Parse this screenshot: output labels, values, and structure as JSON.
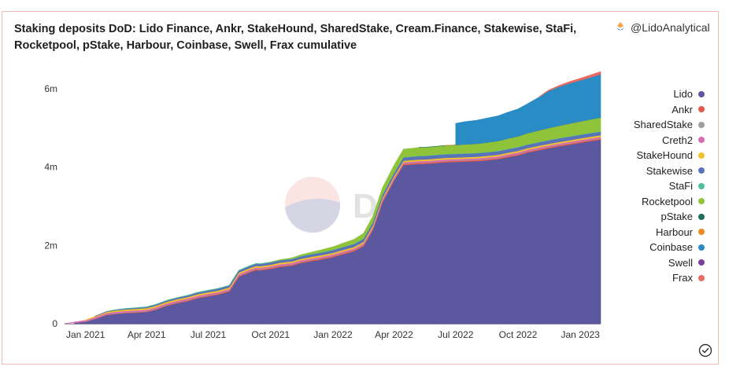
{
  "header": {
    "title": "Staking deposits DoD: Lido Finance, Ankr, StakeHound, SharedStake, Cream.Finance, Stakewise, StaFi, Rocketpool, pStake, Harbour, Coinbase, Swell, Frax cumulative",
    "author": "@LidoAnalytical"
  },
  "watermark": "Dune",
  "chart_data": {
    "type": "area",
    "stacked": true,
    "x": [
      "2020-12-01",
      "2020-12-15",
      "2021-01-01",
      "2021-01-15",
      "2021-02-01",
      "2021-02-15",
      "2021-03-01",
      "2021-03-15",
      "2021-04-01",
      "2021-04-15",
      "2021-05-01",
      "2021-05-15",
      "2021-06-01",
      "2021-06-15",
      "2021-07-01",
      "2021-07-15",
      "2021-08-01",
      "2021-08-15",
      "2021-09-01",
      "2021-09-10",
      "2021-09-15",
      "2021-10-01",
      "2021-10-15",
      "2021-11-01",
      "2021-11-15",
      "2021-12-01",
      "2021-12-15",
      "2022-01-01",
      "2022-01-15",
      "2022-02-01",
      "2022-02-15",
      "2022-03-01",
      "2022-03-15",
      "2022-04-01",
      "2022-04-15",
      "2022-05-01",
      "2022-05-08",
      "2022-05-15",
      "2022-06-01",
      "2022-06-15",
      "2022-07-01",
      "2022-07-15",
      "2022-08-01",
      "2022-08-15",
      "2022-09-01",
      "2022-09-15",
      "2022-10-01",
      "2022-10-15",
      "2022-11-01",
      "2022-11-15",
      "2022-12-01",
      "2022-12-15",
      "2023-01-01",
      "2023-01-15",
      "2023-01-31"
    ],
    "series": [
      {
        "name": "Lido",
        "color": "#5b58a0",
        "values": [
          0,
          0.02,
          0.05,
          0.12,
          0.22,
          0.25,
          0.27,
          0.28,
          0.3,
          0.36,
          0.46,
          0.52,
          0.58,
          0.65,
          0.7,
          0.74,
          0.82,
          1.2,
          1.32,
          1.37,
          1.36,
          1.4,
          1.45,
          1.48,
          1.55,
          1.6,
          1.64,
          1.7,
          1.77,
          1.85,
          1.98,
          2.4,
          3.1,
          3.65,
          4.05,
          4.07,
          4.08,
          4.08,
          4.1,
          4.12,
          4.13,
          4.14,
          4.15,
          4.17,
          4.2,
          4.25,
          4.3,
          4.37,
          4.43,
          4.48,
          4.53,
          4.57,
          4.62,
          4.66,
          4.7
        ]
      },
      {
        "name": "Ankr",
        "color": "#e8584a",
        "values": [
          0,
          0.002,
          0.005,
          0.008,
          0.01,
          0.012,
          0.013,
          0.014,
          0.015,
          0.016,
          0.017,
          0.018,
          0.02,
          0.02,
          0.021,
          0.022,
          0.022,
          0.023,
          0.023,
          0.024,
          0.024,
          0.024,
          0.025,
          0.025,
          0.025,
          0.026,
          0.026,
          0.026,
          0.027,
          0.027,
          0.027,
          0.028,
          0.028,
          0.028,
          0.028,
          0.028,
          0.028,
          0.028,
          0.028,
          0.028,
          0.028,
          0.028,
          0.028,
          0.028,
          0.028,
          0.028,
          0.028,
          0.028,
          0.028,
          0.028,
          0.028,
          0.028,
          0.028,
          0.028,
          0.028
        ]
      },
      {
        "name": "SharedStake",
        "color": "#9e9e9e",
        "values": [
          0,
          0,
          0.002,
          0.005,
          0.008,
          0.01,
          0.01,
          0.01,
          0.01,
          0.01,
          0.01,
          0.01,
          0.01,
          0.01,
          0.01,
          0.01,
          0.01,
          0.01,
          0.01,
          0.01,
          0.01,
          0.01,
          0.01,
          0.01,
          0.01,
          0.01,
          0.01,
          0.01,
          0.01,
          0.01,
          0.01,
          0.01,
          0.01,
          0.01,
          0.01,
          0.01,
          0.01,
          0.01,
          0.01,
          0.01,
          0.01,
          0.01,
          0.01,
          0.01,
          0.01,
          0.01,
          0.01,
          0.01,
          0.01,
          0.01,
          0.01,
          0.01,
          0.01,
          0.01,
          0.01
        ]
      },
      {
        "name": "Creth2",
        "color": "#d86db3",
        "values": [
          0.005,
          0.02,
          0.03,
          0.035,
          0.035,
          0.035,
          0.035,
          0.035,
          0.035,
          0.035,
          0.035,
          0.035,
          0.035,
          0.035,
          0.035,
          0.035,
          0.035,
          0.035,
          0.035,
          0.035,
          0.035,
          0.035,
          0.035,
          0.035,
          0.035,
          0.035,
          0.035,
          0.035,
          0.035,
          0.035,
          0.035,
          0.035,
          0.035,
          0.035,
          0.035,
          0.035,
          0.035,
          0.035,
          0.035,
          0.035,
          0.035,
          0.035,
          0.035,
          0.035,
          0.035,
          0.035,
          0.035,
          0.035,
          0.035,
          0.035,
          0.035,
          0.035,
          0.035,
          0.035,
          0.035
        ]
      },
      {
        "name": "StakeHound",
        "color": "#f2c12e",
        "values": [
          0,
          0,
          0.01,
          0.02,
          0.03,
          0.035,
          0.038,
          0.04,
          0.04,
          0.04,
          0.04,
          0.04,
          0.04,
          0.04,
          0.04,
          0.04,
          0.04,
          0.04,
          0.04,
          0.04,
          0.04,
          0.04,
          0.04,
          0.04,
          0.04,
          0.04,
          0.04,
          0.04,
          0.04,
          0.04,
          0.04,
          0.04,
          0.04,
          0.04,
          0.04,
          0.04,
          0.04,
          0.04,
          0.04,
          0.04,
          0.04,
          0.04,
          0.04,
          0.04,
          0.04,
          0.04,
          0.04,
          0.04,
          0.04,
          0.04,
          0.04,
          0.04,
          0.04,
          0.04,
          0.04
        ]
      },
      {
        "name": "Stakewise",
        "color": "#5a72b8",
        "values": [
          0,
          0,
          0,
          0.005,
          0.01,
          0.015,
          0.02,
          0.025,
          0.028,
          0.03,
          0.032,
          0.035,
          0.038,
          0.04,
          0.042,
          0.045,
          0.048,
          0.05,
          0.052,
          0.054,
          0.054,
          0.056,
          0.058,
          0.06,
          0.062,
          0.064,
          0.066,
          0.068,
          0.07,
          0.072,
          0.075,
          0.078,
          0.08,
          0.082,
          0.085,
          0.087,
          0.088,
          0.088,
          0.09,
          0.09,
          0.09,
          0.09,
          0.09,
          0.09,
          0.09,
          0.09,
          0.09,
          0.09,
          0.09,
          0.09,
          0.09,
          0.09,
          0.09,
          0.09,
          0.09
        ]
      },
      {
        "name": "StaFi",
        "color": "#4dbf9a",
        "values": [
          0,
          0,
          0,
          0,
          0.001,
          0.002,
          0.003,
          0.004,
          0.005,
          0.006,
          0.006,
          0.007,
          0.007,
          0.008,
          0.008,
          0.008,
          0.009,
          0.009,
          0.009,
          0.009,
          0.009,
          0.009,
          0.009,
          0.01,
          0.01,
          0.01,
          0.01,
          0.01,
          0.01,
          0.01,
          0.01,
          0.01,
          0.01,
          0.01,
          0.01,
          0.01,
          0.01,
          0.01,
          0.01,
          0.01,
          0.01,
          0.01,
          0.01,
          0.01,
          0.01,
          0.01,
          0.01,
          0.01,
          0.01,
          0.01,
          0.01,
          0.01,
          0.01,
          0.01,
          0.01
        ]
      },
      {
        "name": "Rocketpool",
        "color": "#8fc43a",
        "values": [
          0,
          0,
          0,
          0,
          0,
          0,
          0,
          0,
          0,
          0,
          0,
          0,
          0,
          0,
          0,
          0,
          0,
          0,
          0,
          0,
          0,
          0.002,
          0.01,
          0.02,
          0.03,
          0.045,
          0.06,
          0.075,
          0.09,
          0.11,
          0.13,
          0.15,
          0.17,
          0.19,
          0.2,
          0.205,
          0.21,
          0.21,
          0.212,
          0.215,
          0.22,
          0.225,
          0.23,
          0.24,
          0.25,
          0.26,
          0.27,
          0.28,
          0.29,
          0.3,
          0.31,
          0.32,
          0.33,
          0.34,
          0.35
        ]
      },
      {
        "name": "pStake",
        "color": "#1f6f5c",
        "values": [
          0,
          0,
          0,
          0,
          0,
          0,
          0,
          0,
          0,
          0,
          0,
          0,
          0,
          0,
          0,
          0,
          0,
          0,
          0,
          0,
          0,
          0,
          0,
          0,
          0,
          0,
          0,
          0,
          0,
          0,
          0,
          0,
          0,
          0,
          0,
          0,
          0.001,
          0.001,
          0.001,
          0.001,
          0.001,
          0.001,
          0.001,
          0.001,
          0.001,
          0.001,
          0.001,
          0.001,
          0.001,
          0.001,
          0.001,
          0.001,
          0.001,
          0.001,
          0.001
        ]
      },
      {
        "name": "Harbour",
        "color": "#ec8a1e",
        "values": [
          0,
          0,
          0,
          0,
          0,
          0,
          0,
          0,
          0,
          0,
          0,
          0,
          0,
          0,
          0,
          0,
          0,
          0,
          0,
          0,
          0,
          0,
          0,
          0,
          0,
          0,
          0,
          0,
          0,
          0,
          0,
          0,
          0,
          0,
          0,
          0,
          0,
          0,
          0,
          0.001,
          0.001,
          0.001,
          0.001,
          0.001,
          0.001,
          0.001,
          0.001,
          0.001,
          0.001,
          0.001,
          0.001,
          0.001,
          0.001,
          0.001,
          0.001
        ]
      },
      {
        "name": "Coinbase",
        "color": "#2a8cc4",
        "values": [
          0,
          0,
          0,
          0,
          0,
          0,
          0,
          0,
          0,
          0,
          0,
          0,
          0,
          0,
          0,
          0,
          0,
          0,
          0,
          0,
          0,
          0,
          0,
          0,
          0,
          0,
          0,
          0,
          0,
          0,
          0,
          0,
          0,
          0,
          0,
          0,
          0,
          0,
          0,
          0,
          0.55,
          0.58,
          0.6,
          0.62,
          0.64,
          0.67,
          0.7,
          0.75,
          0.85,
          0.95,
          1.0,
          1.03,
          1.05,
          1.07,
          1.1
        ]
      },
      {
        "name": "Swell",
        "color": "#7b3fa0",
        "values": [
          0,
          0,
          0,
          0,
          0,
          0,
          0,
          0,
          0,
          0,
          0,
          0,
          0,
          0,
          0,
          0,
          0,
          0,
          0,
          0,
          0,
          0,
          0,
          0,
          0,
          0,
          0,
          0,
          0,
          0,
          0,
          0,
          0,
          0,
          0,
          0,
          0,
          0,
          0,
          0,
          0,
          0,
          0,
          0,
          0,
          0,
          0,
          0,
          0,
          0,
          0,
          0,
          0.001,
          0.001,
          0.002
        ]
      },
      {
        "name": "Frax",
        "color": "#e86a62",
        "values": [
          0,
          0,
          0,
          0,
          0,
          0,
          0,
          0,
          0,
          0,
          0,
          0,
          0,
          0,
          0,
          0,
          0,
          0,
          0,
          0,
          0,
          0,
          0,
          0,
          0,
          0,
          0,
          0,
          0,
          0,
          0,
          0,
          0,
          0,
          0,
          0,
          0,
          0,
          0,
          0,
          0,
          0,
          0,
          0,
          0,
          0,
          0,
          0,
          0.01,
          0.02,
          0.03,
          0.04,
          0.05,
          0.06,
          0.07
        ]
      }
    ],
    "x_ticks": [
      "Jan 2021",
      "Apr 2021",
      "Jul 2021",
      "Oct 2021",
      "Jan 2022",
      "Apr 2022",
      "Jul 2022",
      "Oct 2022",
      "Jan 2023"
    ],
    "y_ticks": [
      "0",
      "2m",
      "4m",
      "6m"
    ],
    "ylim": [
      0,
      6.5
    ],
    "xlim": [
      "2020-12-01",
      "2023-01-31"
    ],
    "legend_position": "right"
  }
}
